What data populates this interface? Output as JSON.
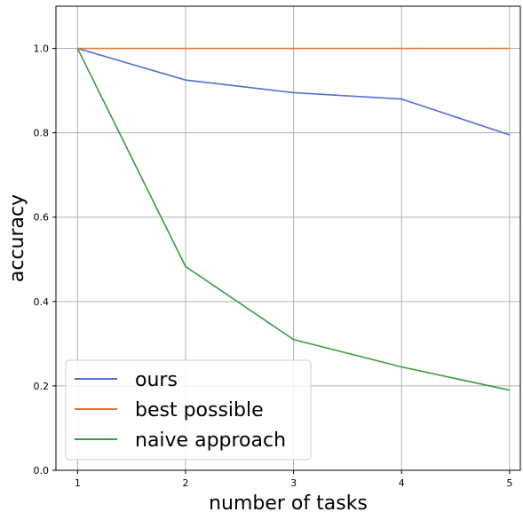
{
  "chart_data": {
    "type": "line",
    "title": "",
    "xlabel": "number of tasks",
    "ylabel": "accuracy",
    "x": [
      1,
      2,
      3,
      4,
      5
    ],
    "x_ticks": [
      "1",
      "2",
      "3",
      "4",
      "5"
    ],
    "y_ticks": [
      "0.0",
      "0.2",
      "0.4",
      "0.6",
      "0.8",
      "1.0"
    ],
    "y_tick_values": [
      0.0,
      0.2,
      0.4,
      0.6,
      0.8,
      1.0
    ],
    "xlim": [
      0.8,
      5.1
    ],
    "ylim": [
      0.0,
      1.1
    ],
    "grid": true,
    "legend_position": "lower-left",
    "series": [
      {
        "name": "ours",
        "color": "#4c72d4",
        "values": [
          1.0,
          0.925,
          0.895,
          0.88,
          0.795
        ]
      },
      {
        "name": "best possible",
        "color": "#e8743b",
        "values": [
          1.0,
          1.0,
          1.0,
          1.0,
          1.0
        ]
      },
      {
        "name": "naive approach",
        "color": "#3a9c3a",
        "values": [
          1.0,
          0.483,
          0.31,
          0.245,
          0.19
        ]
      }
    ]
  }
}
